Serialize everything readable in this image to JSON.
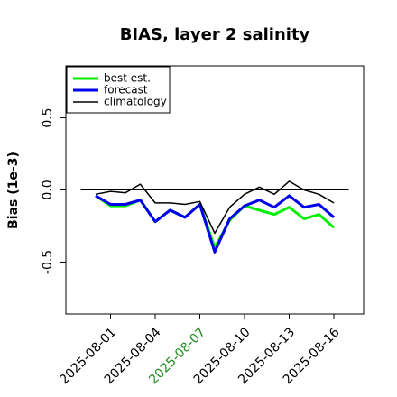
{
  "chart_data": {
    "type": "line",
    "title": "BIAS, layer 2 salinity",
    "ylabel": "Bias (1e-3)",
    "x": [
      "2025-07-31",
      "2025-08-01",
      "2025-08-02",
      "2025-08-03",
      "2025-08-04",
      "2025-08-05",
      "2025-08-06",
      "2025-08-07",
      "2025-08-08",
      "2025-08-09",
      "2025-08-10",
      "2025-08-11",
      "2025-08-12",
      "2025-08-13",
      "2025-08-14",
      "2025-08-15",
      "2025-08-16"
    ],
    "series": [
      {
        "name": "best est.",
        "color": "#00ee00",
        "line_width": 3,
        "values": [
          -0.04,
          -0.11,
          -0.11,
          -0.07,
          -0.22,
          -0.14,
          -0.19,
          -0.1,
          -0.4,
          -0.21,
          -0.11,
          -0.14,
          -0.17,
          -0.12,
          -0.2,
          -0.17,
          -0.26
        ]
      },
      {
        "name": "forecast",
        "color": "#0000ee",
        "line_width": 3,
        "values": [
          -0.04,
          -0.1,
          -0.1,
          -0.07,
          -0.22,
          -0.14,
          -0.19,
          -0.1,
          -0.43,
          -0.2,
          -0.11,
          -0.07,
          -0.12,
          -0.04,
          -0.12,
          -0.1,
          -0.19
        ]
      },
      {
        "name": "climatology",
        "color": "#000000",
        "line_width": 1.5,
        "values": [
          -0.03,
          -0.01,
          -0.02,
          0.04,
          -0.09,
          -0.09,
          -0.1,
          -0.08,
          -0.3,
          -0.12,
          -0.03,
          0.02,
          -0.03,
          0.06,
          0.0,
          -0.03,
          -0.09
        ]
      }
    ],
    "hline": 0,
    "xlim": [
      "2025-07-29",
      "2025-08-18"
    ],
    "xticks": [
      "2025-08-01",
      "2025-08-04",
      "2025-08-07",
      "2025-08-10",
      "2025-08-13",
      "2025-08-16"
    ],
    "highlight_xtick": "2025-08-07",
    "highlight_color": "#228b22",
    "ylim": [
      -0.86,
      0.86
    ],
    "yticks": [
      {
        "value": -0.5,
        "label": "-0.5"
      },
      {
        "value": 0,
        "label": "0.0"
      },
      {
        "value": 0.5,
        "label": "0.5"
      }
    ],
    "legend": "top-left"
  }
}
